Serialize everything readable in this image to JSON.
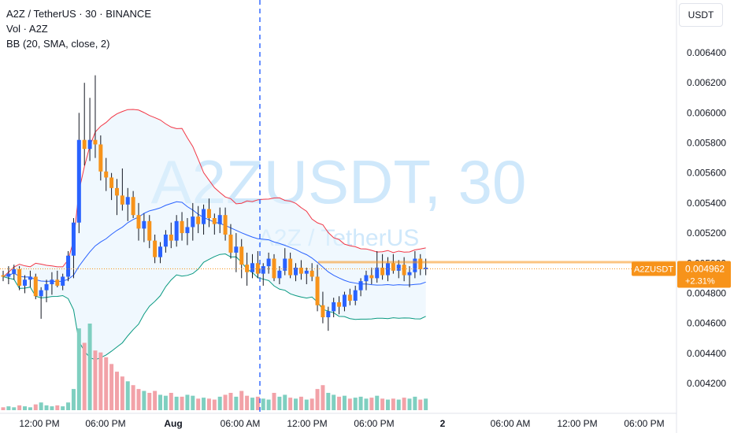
{
  "legend": {
    "title": "A2Z / TetherUS · 30 · BINANCE",
    "vol": "Vol · A2Z",
    "bb": "BB (20, SMA, close, 2)"
  },
  "watermark": {
    "symbol": "A2ZUSDT, 30",
    "name": "A2Z / TetherUS"
  },
  "currency": "USDT",
  "price_tag": {
    "symbol": "A2ZUSDT",
    "price": "0.004962",
    "change": "+2.31%",
    "color": "#f7931a"
  },
  "colors": {
    "up": "#2962ff",
    "down": "#f7931a",
    "bb_upper": "#f23645",
    "bb_middle": "#2962ff",
    "bb_lower": "#089981",
    "bb_fill": "#e3f2fd",
    "vol_up": "#7fcfc0",
    "vol_down": "#f2a2a8",
    "watermark": "#cfe8fb",
    "axis_text": "#131722",
    "session_line": "#2962ff"
  },
  "chart_data": {
    "type": "candlestick",
    "y_axis": {
      "ticks": [
        "0.006400",
        "0.006200",
        "0.006000",
        "0.005800",
        "0.005600",
        "0.005400",
        "0.005200",
        "0.005000",
        "0.004800",
        "0.004600",
        "0.004400",
        "0.004200"
      ],
      "range": [
        0.00405,
        0.00655
      ]
    },
    "x_axis": {
      "ticks": [
        "12:00 PM",
        "06:00 PM",
        "Aug",
        "06:00 AM",
        "12:00 PM",
        "06:00 PM",
        "2",
        "06:00 AM",
        "12:00 PM",
        "06:00 PM"
      ]
    },
    "session_break": "Aug",
    "candles": [
      [
        0.00492,
        0.00495,
        0.00488,
        0.00491
      ],
      [
        0.00491,
        0.00498,
        0.00486,
        0.00493
      ],
      [
        0.00493,
        0.00499,
        0.00489,
        0.00496
      ],
      [
        0.00496,
        0.00498,
        0.00482,
        0.00485
      ],
      [
        0.00485,
        0.00492,
        0.0048,
        0.00489
      ],
      [
        0.00489,
        0.00495,
        0.00484,
        0.00491
      ],
      [
        0.00491,
        0.00493,
        0.00476,
        0.00478
      ],
      [
        0.00478,
        0.00484,
        0.00463,
        0.00482
      ],
      [
        0.00482,
        0.00489,
        0.00474,
        0.00486
      ],
      [
        0.00486,
        0.00494,
        0.00479,
        0.00489
      ],
      [
        0.00489,
        0.00495,
        0.00484,
        0.00485
      ],
      [
        0.00485,
        0.00493,
        0.00482,
        0.00491
      ],
      [
        0.00491,
        0.00508,
        0.00488,
        0.00505
      ],
      [
        0.00505,
        0.0053,
        0.0049,
        0.00527
      ],
      [
        0.00527,
        0.006,
        0.0052,
        0.00582
      ],
      [
        0.00582,
        0.0062,
        0.00565,
        0.00576
      ],
      [
        0.00576,
        0.0061,
        0.00568,
        0.00582
      ],
      [
        0.00582,
        0.00625,
        0.0057,
        0.00579
      ],
      [
        0.00579,
        0.00585,
        0.00555,
        0.00561
      ],
      [
        0.00561,
        0.0057,
        0.00548,
        0.00557
      ],
      [
        0.00557,
        0.0056,
        0.00542,
        0.0055
      ],
      [
        0.0055,
        0.00556,
        0.00532,
        0.00545
      ],
      [
        0.00545,
        0.00563,
        0.00535,
        0.00539
      ],
      [
        0.00539,
        0.0055,
        0.00528,
        0.00544
      ],
      [
        0.00544,
        0.00548,
        0.0053,
        0.00532
      ],
      [
        0.00532,
        0.0054,
        0.00515,
        0.00523
      ],
      [
        0.00523,
        0.00533,
        0.00514,
        0.00528
      ],
      [
        0.00528,
        0.00532,
        0.0051,
        0.00515
      ],
      [
        0.00515,
        0.00519,
        0.005,
        0.00504
      ],
      [
        0.00504,
        0.00514,
        0.005,
        0.00511
      ],
      [
        0.00511,
        0.00522,
        0.00507,
        0.00519
      ],
      [
        0.00519,
        0.00527,
        0.0051,
        0.00515
      ],
      [
        0.00515,
        0.00532,
        0.00511,
        0.00528
      ],
      [
        0.00528,
        0.00534,
        0.00515,
        0.0052
      ],
      [
        0.0052,
        0.0053,
        0.00512,
        0.00524
      ],
      [
        0.00524,
        0.0054,
        0.00515,
        0.00531
      ],
      [
        0.00531,
        0.00538,
        0.0052,
        0.00526
      ],
      [
        0.00526,
        0.00539,
        0.00519,
        0.00536
      ],
      [
        0.00536,
        0.00543,
        0.00524,
        0.0053
      ],
      [
        0.0053,
        0.00533,
        0.00519,
        0.00526
      ],
      [
        0.00526,
        0.00537,
        0.0052,
        0.00532
      ],
      [
        0.00532,
        0.00537,
        0.00515,
        0.00519
      ],
      [
        0.00519,
        0.00526,
        0.00503,
        0.00507
      ],
      [
        0.00507,
        0.0052,
        0.00494,
        0.00511
      ],
      [
        0.00511,
        0.00516,
        0.0049,
        0.00499
      ],
      [
        0.00499,
        0.00507,
        0.00485,
        0.00494
      ],
      [
        0.00494,
        0.00506,
        0.0049,
        0.005
      ],
      [
        0.005,
        0.00508,
        0.0049,
        0.00493
      ],
      [
        0.00493,
        0.005,
        0.00485,
        0.00498
      ],
      [
        0.00498,
        0.00507,
        0.00493,
        0.00503
      ],
      [
        0.00503,
        0.00506,
        0.00488,
        0.0049
      ],
      [
        0.0049,
        0.00498,
        0.00486,
        0.00495
      ],
      [
        0.00495,
        0.0051,
        0.00492,
        0.00503
      ],
      [
        0.00503,
        0.00507,
        0.0049,
        0.00492
      ],
      [
        0.00492,
        0.005,
        0.00488,
        0.00497
      ],
      [
        0.00497,
        0.00502,
        0.00489,
        0.00493
      ],
      [
        0.00493,
        0.00497,
        0.00486,
        0.00495
      ],
      [
        0.00495,
        0.005,
        0.00488,
        0.00491
      ],
      [
        0.00491,
        0.00499,
        0.00468,
        0.00472
      ],
      [
        0.00472,
        0.00481,
        0.0046,
        0.00464
      ],
      [
        0.00464,
        0.00471,
        0.00455,
        0.00468
      ],
      [
        0.00468,
        0.00477,
        0.00464,
        0.00474
      ],
      [
        0.00474,
        0.00478,
        0.00466,
        0.00471
      ],
      [
        0.00471,
        0.00481,
        0.00468,
        0.00479
      ],
      [
        0.00479,
        0.00483,
        0.00472,
        0.00475
      ],
      [
        0.00475,
        0.00485,
        0.00472,
        0.00482
      ],
      [
        0.00482,
        0.0049,
        0.00478,
        0.00488
      ],
      [
        0.00488,
        0.00495,
        0.00482,
        0.00492
      ],
      [
        0.00492,
        0.00497,
        0.00486,
        0.0049
      ],
      [
        0.0049,
        0.00508,
        0.00487,
        0.00497
      ],
      [
        0.00497,
        0.00506,
        0.00489,
        0.00492
      ],
      [
        0.00492,
        0.00504,
        0.00488,
        0.005
      ],
      [
        0.005,
        0.00506,
        0.00493,
        0.00495
      ],
      [
        0.00495,
        0.00502,
        0.0049,
        0.00499
      ],
      [
        0.00499,
        0.00504,
        0.00488,
        0.00492
      ],
      [
        0.00492,
        0.00498,
        0.00484,
        0.00494
      ],
      [
        0.00494,
        0.00508,
        0.0049,
        0.00503
      ],
      [
        0.00503,
        0.00506,
        0.00492,
        0.00496
      ],
      [
        0.00496,
        0.00503,
        0.00492,
        0.00497
      ]
    ],
    "volume": [
      3,
      4,
      3,
      5,
      4,
      3,
      6,
      8,
      5,
      4,
      5,
      4,
      8,
      22,
      85,
      70,
      90,
      62,
      60,
      55,
      48,
      40,
      35,
      30,
      26,
      22,
      20,
      18,
      20,
      16,
      15,
      18,
      14,
      14,
      16,
      15,
      12,
      13,
      12,
      11,
      14,
      16,
      18,
      14,
      20,
      15,
      13,
      14,
      12,
      11,
      18,
      14,
      16,
      13,
      12,
      14,
      11,
      12,
      22,
      26,
      18,
      16,
      14,
      15,
      12,
      13,
      14,
      12,
      13,
      15,
      12,
      11,
      12,
      11,
      13,
      12,
      14,
      11,
      12
    ]
  }
}
